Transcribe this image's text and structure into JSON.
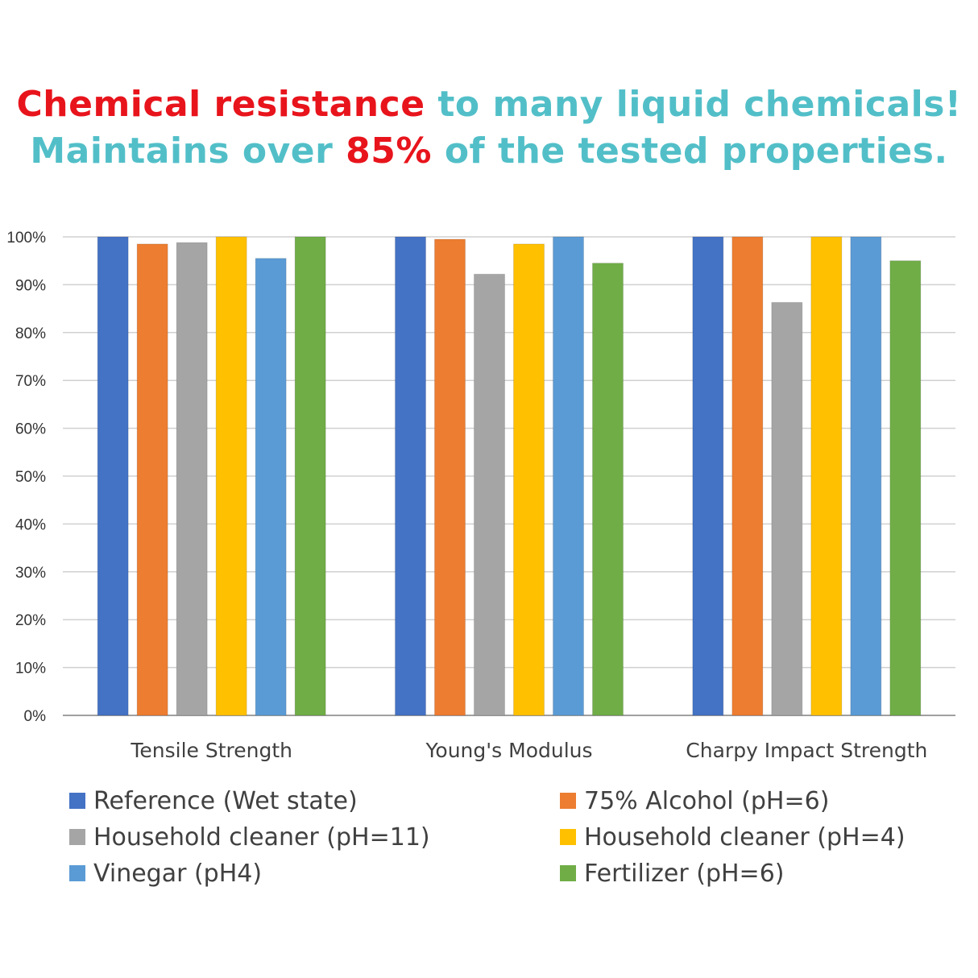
{
  "headline": {
    "line1": {
      "part1": "Chemical resistance",
      "part2": " to many liquid chemicals!"
    },
    "line2": {
      "part1": "Maintains over ",
      "part2": "85%",
      "part3": " of the tested properties."
    }
  },
  "colors": {
    "red": "#e8141c",
    "teal": "#52bfc8",
    "grid": "#d0d0d0",
    "axis": "#a0a0a0"
  },
  "chart_data": {
    "type": "bar",
    "categories": [
      "Tensile Strength",
      "Young's Modulus",
      "Charpy Impact Strength"
    ],
    "y_ticks": [
      "0%",
      "10%",
      "20%",
      "30%",
      "40%",
      "50%",
      "60%",
      "70%",
      "80%",
      "90%",
      "100%"
    ],
    "ylim": [
      0,
      100
    ],
    "grid": true,
    "legend_position": "bottom",
    "series": [
      {
        "name": "Reference (Wet state)",
        "color": "#4472c4",
        "values": [
          100,
          100,
          100
        ]
      },
      {
        "name": "75% Alcohol (pH=6)",
        "color": "#ed7d31",
        "values": [
          98.5,
          99.5,
          100
        ]
      },
      {
        "name": "Household cleaner (pH=11)",
        "color": "#a5a5a5",
        "values": [
          98.8,
          92.2,
          86.3
        ]
      },
      {
        "name": "Household cleaner (pH=4)",
        "color": "#ffc000",
        "values": [
          100,
          98.5,
          100
        ]
      },
      {
        "name": "Vinegar (pH4)",
        "color": "#5b9bd5",
        "values": [
          95.5,
          100,
          100
        ]
      },
      {
        "name": "Fertilizer (pH=6)",
        "color": "#70ad47",
        "values": [
          100,
          94.5,
          95
        ]
      }
    ]
  }
}
